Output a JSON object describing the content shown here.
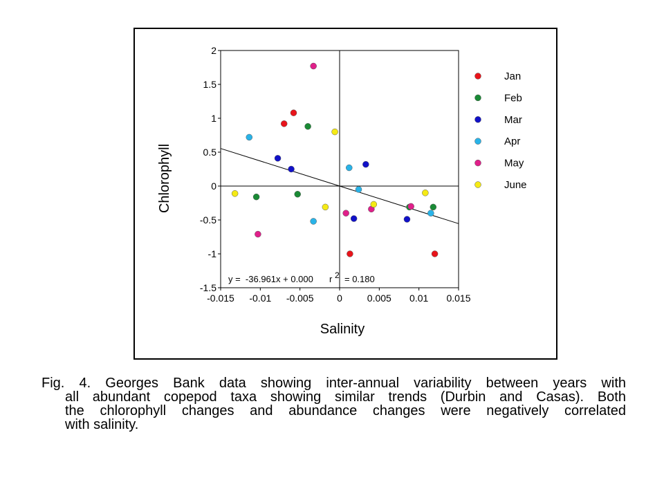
{
  "chart_data": {
    "type": "scatter",
    "xlabel": "Salinity",
    "ylabel": "Chlorophyll",
    "xlim": [
      -0.015,
      0.015
    ],
    "ylim": [
      -1.5,
      2
    ],
    "x_ticks": [
      -0.015,
      -0.01,
      -0.005,
      0,
      0.005,
      0.01,
      0.015
    ],
    "x_tick_labels": [
      "-0.015",
      "-0.01",
      "-0.005",
      "0",
      "0.005",
      "0.01",
      "0.015"
    ],
    "y_ticks": [
      -1.5,
      -1,
      -0.5,
      0,
      0.5,
      1,
      1.5,
      2
    ],
    "y_tick_labels": [
      "-1.5",
      "-1",
      "-0.5",
      "0",
      "0.5",
      "1",
      "1.5",
      "2"
    ],
    "grid": false,
    "zero_lines": true,
    "legend_position": "right",
    "series": [
      {
        "name": "Jan",
        "color": "#e8141b",
        "points": [
          [
            -0.007,
            0.92
          ],
          [
            -0.0058,
            1.08
          ],
          [
            0.0013,
            -1.0
          ],
          [
            0.012,
            -1.0
          ]
        ]
      },
      {
        "name": "Feb",
        "color": "#1a8a35",
        "points": [
          [
            -0.0105,
            -0.16
          ],
          [
            -0.0053,
            -0.12
          ],
          [
            -0.004,
            0.88
          ],
          [
            0.0088,
            -0.31
          ],
          [
            0.0118,
            -0.31
          ]
        ]
      },
      {
        "name": "Mar",
        "color": "#1111c8",
        "points": [
          [
            -0.0078,
            0.41
          ],
          [
            -0.0061,
            0.25
          ],
          [
            0.0018,
            -0.48
          ],
          [
            0.0033,
            0.32
          ],
          [
            0.0085,
            -0.49
          ]
        ]
      },
      {
        "name": "Apr",
        "color": "#29b3e8",
        "points": [
          [
            -0.0114,
            0.72
          ],
          [
            -0.0033,
            -0.52
          ],
          [
            0.0012,
            0.27
          ],
          [
            0.0024,
            -0.05
          ],
          [
            0.0115,
            -0.4
          ]
        ]
      },
      {
        "name": "May",
        "color": "#e0208a",
        "points": [
          [
            -0.0033,
            1.77
          ],
          [
            -0.0103,
            -0.71
          ],
          [
            0.0008,
            -0.4
          ],
          [
            0.004,
            -0.34
          ],
          [
            0.009,
            -0.3
          ]
        ]
      },
      {
        "name": "June",
        "color": "#f5ea15",
        "points": [
          [
            -0.0132,
            -0.11
          ],
          [
            -0.0018,
            -0.31
          ],
          [
            -0.0006,
            0.8
          ],
          [
            0.0043,
            -0.27
          ],
          [
            0.0108,
            -0.1
          ]
        ]
      }
    ],
    "trendline": {
      "slope": -36.961,
      "intercept": 0.0,
      "x_range": [
        -0.015,
        0.015
      ]
    },
    "annotation": {
      "equation": "y =  -36.961x + 0.000",
      "r_label": "r",
      "r_superscript": "2",
      "r_value": "= 0.180"
    }
  },
  "caption": {
    "lines": [
      "Fig. 4.  Georges Bank data showing inter-annual variability between years with",
      "all abundant copepod taxa showing similar trends (Durbin and Casas). Both",
      "the chlorophyll changes and abundance changes were negatively correlated",
      "with salinity."
    ]
  }
}
